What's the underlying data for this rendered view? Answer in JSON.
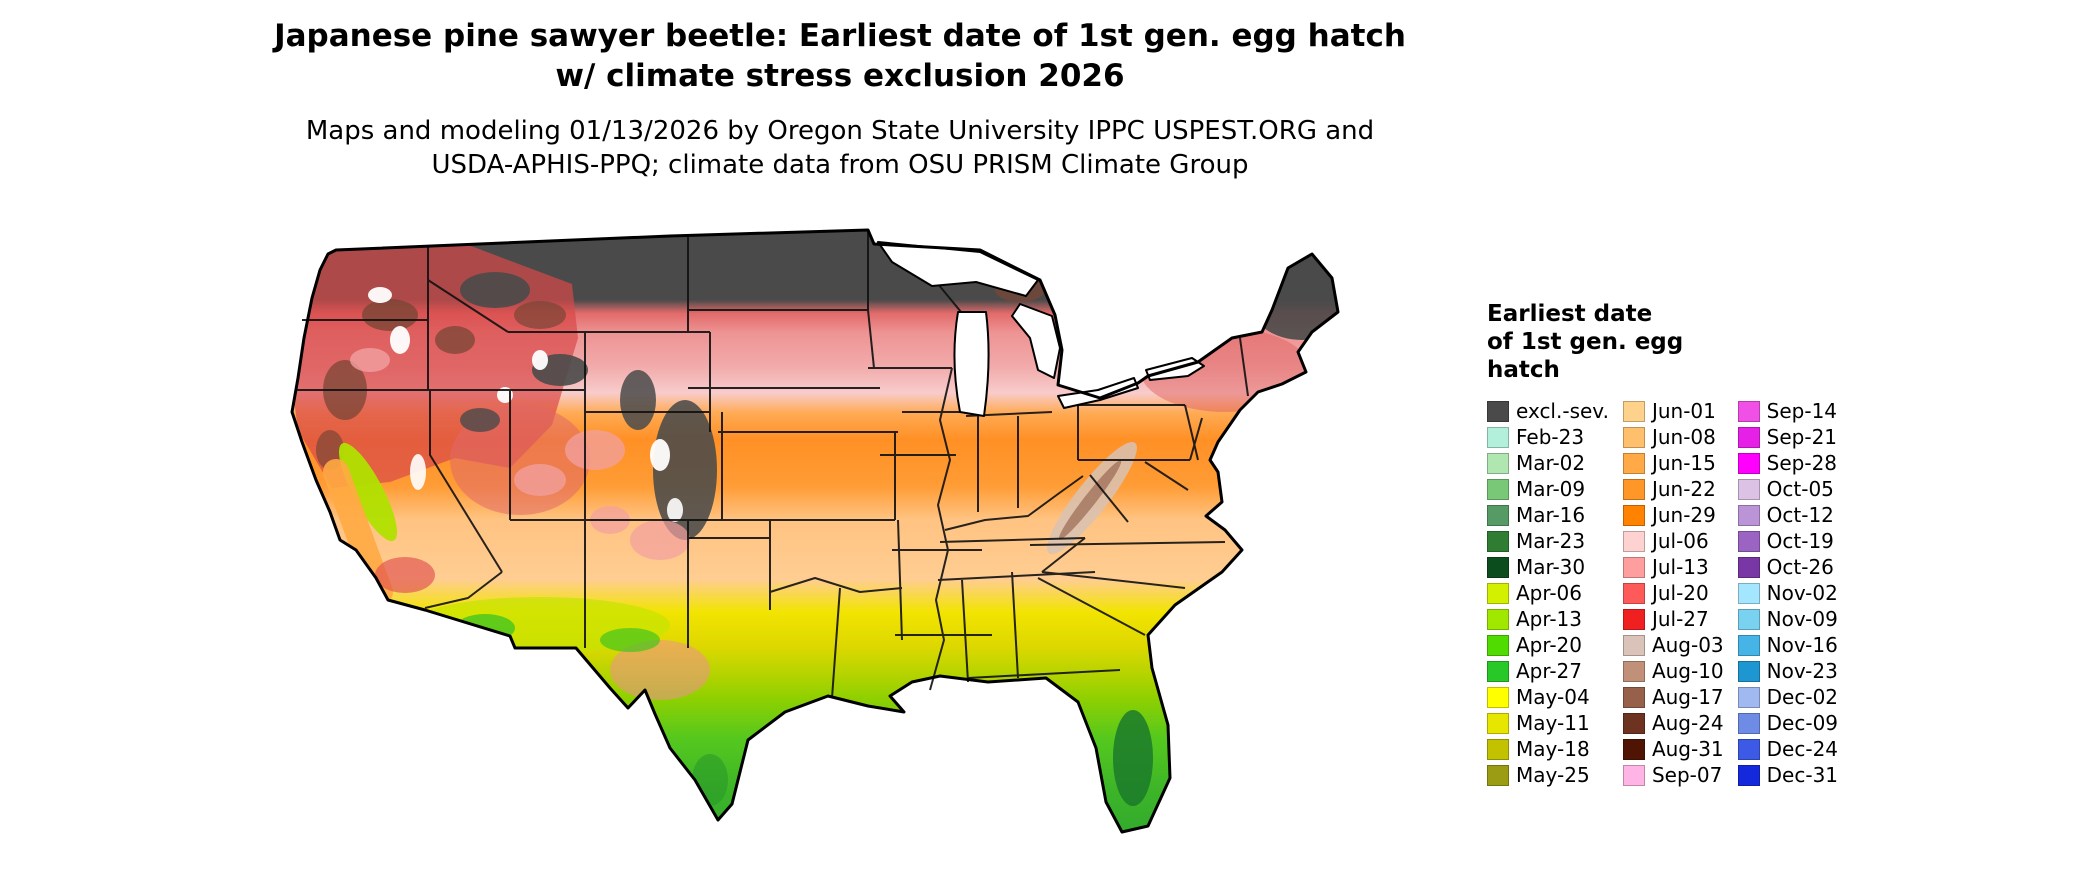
{
  "title": {
    "line1": "Japanese pine sawyer beetle: Earliest date of 1st gen. egg hatch",
    "line2": "w/ climate stress exclusion 2026"
  },
  "subtitle": {
    "line1": "Maps and modeling 01/13/2026 by Oregon State University IPPC USPEST.ORG and",
    "line2": "USDA-APHIS-PPQ; climate data from OSU PRISM Climate Group"
  },
  "legend": {
    "title_lines": [
      "Earliest date",
      "of 1st gen. egg",
      "hatch"
    ],
    "columns": [
      {
        "entries": [
          {
            "label": "excl.-sev.",
            "color": "#4a4a4a"
          },
          {
            "label": "Feb-23",
            "color": "#b2f0dc"
          },
          {
            "label": "Mar-02",
            "color": "#b0e6b0"
          },
          {
            "label": "Mar-09",
            "color": "#78c878"
          },
          {
            "label": "Mar-16",
            "color": "#569b66"
          },
          {
            "label": "Mar-23",
            "color": "#2e7d32"
          },
          {
            "label": "Mar-30",
            "color": "#0c4d1e"
          },
          {
            "label": "Apr-06",
            "color": "#d2f000"
          },
          {
            "label": "Apr-13",
            "color": "#a0e800"
          },
          {
            "label": "Apr-20",
            "color": "#50dc00"
          },
          {
            "label": "Apr-27",
            "color": "#28c828"
          },
          {
            "label": "May-04",
            "color": "#ffff00"
          },
          {
            "label": "May-11",
            "color": "#e6e600"
          },
          {
            "label": "May-18",
            "color": "#c2c200"
          },
          {
            "label": "May-25",
            "color": "#9b9b14"
          }
        ]
      },
      {
        "entries": [
          {
            "label": "Jun-01",
            "color": "#ffd28c"
          },
          {
            "label": "Jun-08",
            "color": "#ffc06e"
          },
          {
            "label": "Jun-15",
            "color": "#ffaa46"
          },
          {
            "label": "Jun-22",
            "color": "#ff9628"
          },
          {
            "label": "Jun-29",
            "color": "#ff8200"
          },
          {
            "label": "Jul-06",
            "color": "#ffd2d2"
          },
          {
            "label": "Jul-13",
            "color": "#ff9e9e"
          },
          {
            "label": "Jul-20",
            "color": "#ff5a5a"
          },
          {
            "label": "Jul-27",
            "color": "#f02020"
          },
          {
            "label": "Aug-03",
            "color": "#dcc3b9"
          },
          {
            "label": "Aug-10",
            "color": "#c09078"
          },
          {
            "label": "Aug-17",
            "color": "#96604b"
          },
          {
            "label": "Aug-24",
            "color": "#6e3220"
          },
          {
            "label": "Aug-31",
            "color": "#501405"
          },
          {
            "label": "Sep-07",
            "color": "#ffb4e6"
          }
        ]
      },
      {
        "entries": [
          {
            "label": "Sep-14",
            "color": "#f050e6"
          },
          {
            "label": "Sep-21",
            "color": "#e620e6"
          },
          {
            "label": "Sep-28",
            "color": "#ff00ff"
          },
          {
            "label": "Oct-05",
            "color": "#dcc3e6"
          },
          {
            "label": "Oct-12",
            "color": "#bb93d7"
          },
          {
            "label": "Oct-19",
            "color": "#9b64c3"
          },
          {
            "label": "Oct-26",
            "color": "#7837a5"
          },
          {
            "label": "Nov-02",
            "color": "#a5e6ff"
          },
          {
            "label": "Nov-09",
            "color": "#78d2f0"
          },
          {
            "label": "Nov-16",
            "color": "#46b4e6"
          },
          {
            "label": "Nov-23",
            "color": "#1e96d2"
          },
          {
            "label": "Dec-02",
            "color": "#a0b9f0"
          },
          {
            "label": "Dec-09",
            "color": "#6e8ce6"
          },
          {
            "label": "Dec-24",
            "color": "#3c5ae6"
          },
          {
            "label": "Dec-31",
            "color": "#1428dc"
          }
        ]
      }
    ]
  }
}
